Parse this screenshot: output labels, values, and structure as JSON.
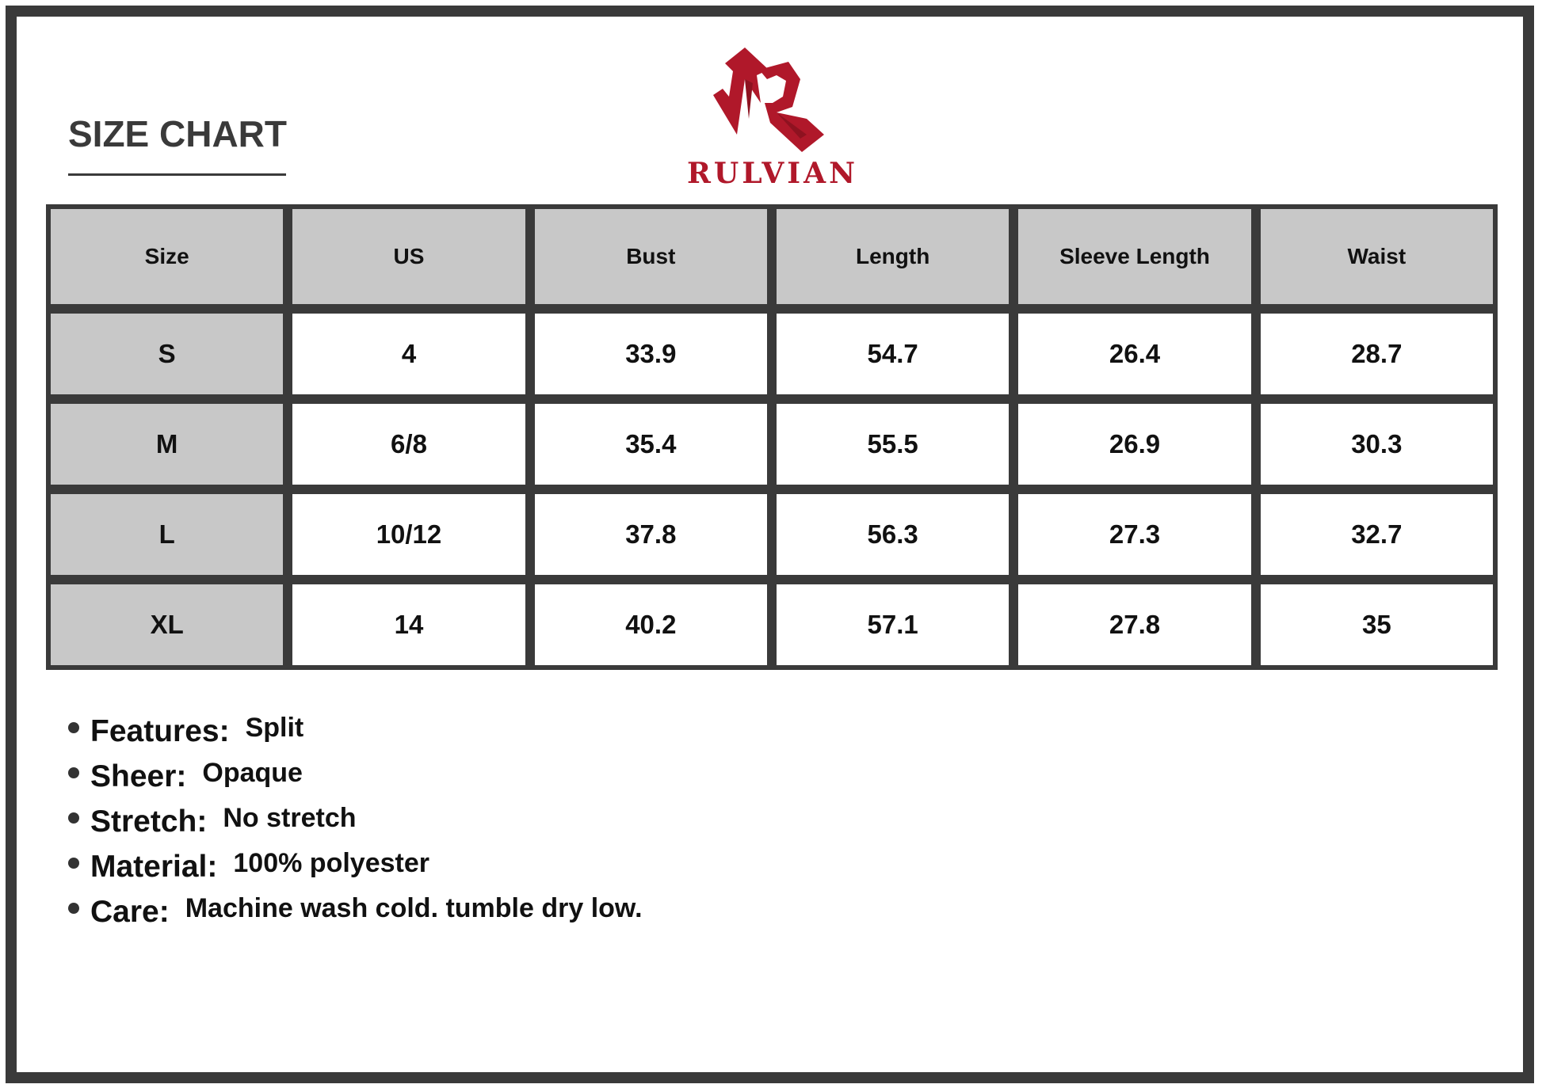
{
  "title": "SIZE CHART",
  "brand": {
    "name": "RULVIAN",
    "color": "#b0182a"
  },
  "table": {
    "headers": [
      "Size",
      "US",
      "Bust",
      "Length",
      "Sleeve Length",
      "Waist"
    ],
    "rows": [
      [
        "S",
        "4",
        "33.9",
        "54.7",
        "26.4",
        "28.7"
      ],
      [
        "M",
        "6/8",
        "35.4",
        "55.5",
        "26.9",
        "30.3"
      ],
      [
        "L",
        "10/12",
        "37.8",
        "56.3",
        "27.3",
        "32.7"
      ],
      [
        "XL",
        "14",
        "40.2",
        "57.1",
        "27.8",
        "35"
      ]
    ]
  },
  "features": [
    {
      "label": "Features:",
      "value": "Split"
    },
    {
      "label": "Sheer:",
      "value": "Opaque"
    },
    {
      "label": "Stretch:",
      "value": "No stretch"
    },
    {
      "label": "Material:",
      "value": "100% polyester"
    },
    {
      "label": "Care:",
      "value": "Machine wash cold. tumble dry low."
    }
  ]
}
